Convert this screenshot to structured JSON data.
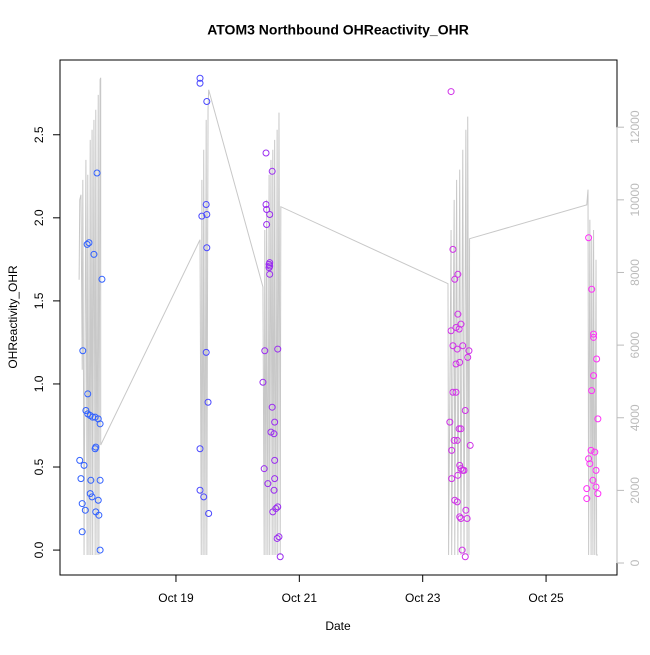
{
  "chart_data": {
    "type": "scatter",
    "title": "ATOM3 Northbound OHReactivity_OHR",
    "xlabel": "Date",
    "ylabel": "OHReactivity_OHR",
    "xlim": [
      17.12,
      26.15
    ],
    "xticks": [
      {
        "value": 19,
        "label": "Oct 19"
      },
      {
        "value": 21,
        "label": "Oct 21"
      },
      {
        "value": 23,
        "label": "Oct 23"
      },
      {
        "value": 25,
        "label": "Oct 25"
      }
    ],
    "ylim": [
      -0.15,
      2.95
    ],
    "yticks": [
      {
        "value": 0,
        "label": "0.0"
      },
      0.5,
      {
        "value": 1,
        "label": "1.0"
      },
      1.5,
      {
        "value": 2,
        "label": "2.0"
      },
      2.5
    ],
    "y2lim": [
      -330,
      13850
    ],
    "y2ticks": [
      0,
      2000,
      4000,
      6000,
      8000,
      10000,
      12000
    ],
    "series": [
      {
        "type": "line",
        "axis": "y2",
        "color": "#c8c8c8",
        "x": [
          17.43,
          17.44,
          17.46,
          17.48,
          17.49,
          17.51,
          17.54,
          17.56,
          17.57,
          17.59,
          17.61,
          17.62,
          17.64,
          17.65,
          17.67,
          17.69,
          17.7,
          17.72,
          17.74,
          17.75,
          17.77,
          17.78,
          17.78,
          17.82,
          19.39,
          19.41,
          19.42,
          19.44,
          19.45,
          19.47,
          19.49,
          19.5,
          19.52,
          19.53,
          20.41,
          20.43,
          20.44,
          20.46,
          20.47,
          20.49,
          20.51,
          20.52,
          20.54,
          20.56,
          20.57,
          20.59,
          20.6,
          20.62,
          20.64,
          20.65,
          20.67,
          20.69,
          20.7,
          23.41,
          23.42,
          23.46,
          23.47,
          23.51,
          23.52,
          23.55,
          23.57,
          23.6,
          23.62,
          23.65,
          23.67,
          23.7,
          23.72,
          23.73,
          23.75,
          23.76,
          25.66,
          25.68,
          25.69,
          25.71,
          25.73,
          25.74,
          25.76,
          25.77,
          25.79,
          25.81,
          25.82,
          25.84
        ],
        "values": [
          7800,
          10000,
          10140,
          5320,
          10550,
          220,
          11100,
          220,
          10690,
          220,
          11650,
          220,
          11930,
          220,
          12200,
          220,
          12480,
          220,
          12890,
          220,
          13310,
          13360,
          3250,
          3390,
          8900,
          220,
          10550,
          220,
          11380,
          220,
          12200,
          220,
          12480,
          13030,
          7600,
          220,
          9170,
          220,
          10000,
          220,
          10690,
          220,
          11100,
          220,
          11380,
          220,
          11650,
          220,
          11930,
          220,
          12400,
          220,
          9810,
          7690,
          220,
          9170,
          220,
          10000,
          220,
          10550,
          220,
          10830,
          220,
          11380,
          220,
          11930,
          220,
          12290,
          220,
          8930,
          9860,
          10280,
          220,
          9450,
          220,
          8900,
          220,
          9170,
          220,
          8350,
          220,
          220
        ]
      },
      {
        "type": "scatter",
        "color": "#3060ff",
        "x": [
          17.44,
          17.46,
          17.48,
          17.48,
          17.49,
          17.51,
          17.53,
          17.54,
          17.56,
          17.57,
          17.59,
          17.61,
          17.61,
          17.62,
          17.64,
          17.65,
          17.67,
          17.69,
          17.69,
          17.7,
          17.7,
          17.72,
          17.74,
          17.74,
          17.75,
          17.77,
          17.77,
          17.8,
          17.77,
          17.57
        ],
        "values": [
          0.54,
          0.43,
          0.28,
          0.11,
          1.2,
          0.51,
          0.24,
          0.84,
          1.84,
          0.82,
          1.85,
          0.81,
          0.34,
          0.42,
          0.32,
          0.8,
          1.78,
          0.8,
          0.61,
          0.62,
          0.23,
          2.27,
          0.79,
          0.3,
          0.21,
          0.76,
          0.42,
          1.63,
          0.0,
          0.94
        ]
      },
      {
        "type": "scatter",
        "color": "#4a48ff",
        "x": [
          19.39,
          19.39,
          19.39,
          19.39,
          19.42,
          19.45,
          19.49,
          19.49,
          19.5,
          19.5,
          19.5,
          19.52,
          19.53
        ],
        "values": [
          2.84,
          2.81,
          0.61,
          0.36,
          2.01,
          0.32,
          2.08,
          1.19,
          2.7,
          2.02,
          1.82,
          0.89,
          0.22
        ]
      },
      {
        "type": "scatter",
        "color": "#9a2cf0",
        "x": [
          20.41,
          20.43,
          20.44,
          20.46,
          20.46,
          20.47,
          20.47,
          20.49,
          20.51,
          20.51,
          20.52,
          20.52,
          20.52,
          20.54,
          20.56,
          20.56,
          20.57,
          20.59,
          20.59,
          20.6,
          20.6,
          20.6,
          20.62,
          20.64,
          20.65,
          20.65,
          20.67,
          20.69,
          20.52
        ],
        "values": [
          1.01,
          0.49,
          1.2,
          2.39,
          2.08,
          2.05,
          1.96,
          0.4,
          1.72,
          1.7,
          1.66,
          2.02,
          1.73,
          0.71,
          2.28,
          0.86,
          0.23,
          0.36,
          0.7,
          0.54,
          0.77,
          0.43,
          0.25,
          0.07,
          0.26,
          1.21,
          0.08,
          -0.04,
          1.71
        ]
      },
      {
        "type": "scatter",
        "color": "#d030e8",
        "x": [
          23.46,
          23.44,
          23.46,
          23.47,
          23.47,
          23.49,
          23.49,
          23.49,
          23.51,
          23.52,
          23.52,
          23.54,
          23.54,
          23.54,
          23.56,
          23.56,
          23.56,
          23.57,
          23.57,
          23.57,
          23.59,
          23.59,
          23.6,
          23.6,
          23.6,
          23.62,
          23.62,
          23.62,
          23.64,
          23.65,
          23.65,
          23.67,
          23.69,
          23.69,
          23.7,
          23.72,
          23.73,
          23.75,
          23.77,
          23.62
        ],
        "values": [
          2.76,
          0.77,
          1.32,
          0.43,
          0.6,
          1.81,
          1.23,
          0.95,
          0.66,
          0.3,
          1.63,
          1.34,
          1.12,
          0.95,
          1.21,
          0.29,
          0.66,
          1.66,
          0.45,
          1.42,
          0.73,
          1.33,
          1.13,
          0.2,
          0.51,
          1.36,
          0.73,
          0.19,
          0.0,
          1.23,
          0.48,
          0.48,
          -0.04,
          0.84,
          0.24,
          0.19,
          1.16,
          1.2,
          0.63,
          0.49
        ]
      },
      {
        "type": "scatter",
        "color": "#ff30f8",
        "x": [
          25.69,
          25.66,
          25.66,
          25.69,
          25.71,
          25.73,
          25.74,
          25.74,
          25.76,
          25.77,
          25.77,
          25.77,
          25.79,
          25.81,
          25.81,
          25.82,
          25.84,
          25.84
        ],
        "values": [
          1.88,
          0.37,
          0.31,
          0.55,
          0.52,
          0.6,
          1.57,
          0.96,
          0.42,
          1.28,
          1.05,
          1.3,
          0.59,
          0.48,
          0.38,
          1.15,
          0.79,
          0.34
        ]
      }
    ]
  }
}
